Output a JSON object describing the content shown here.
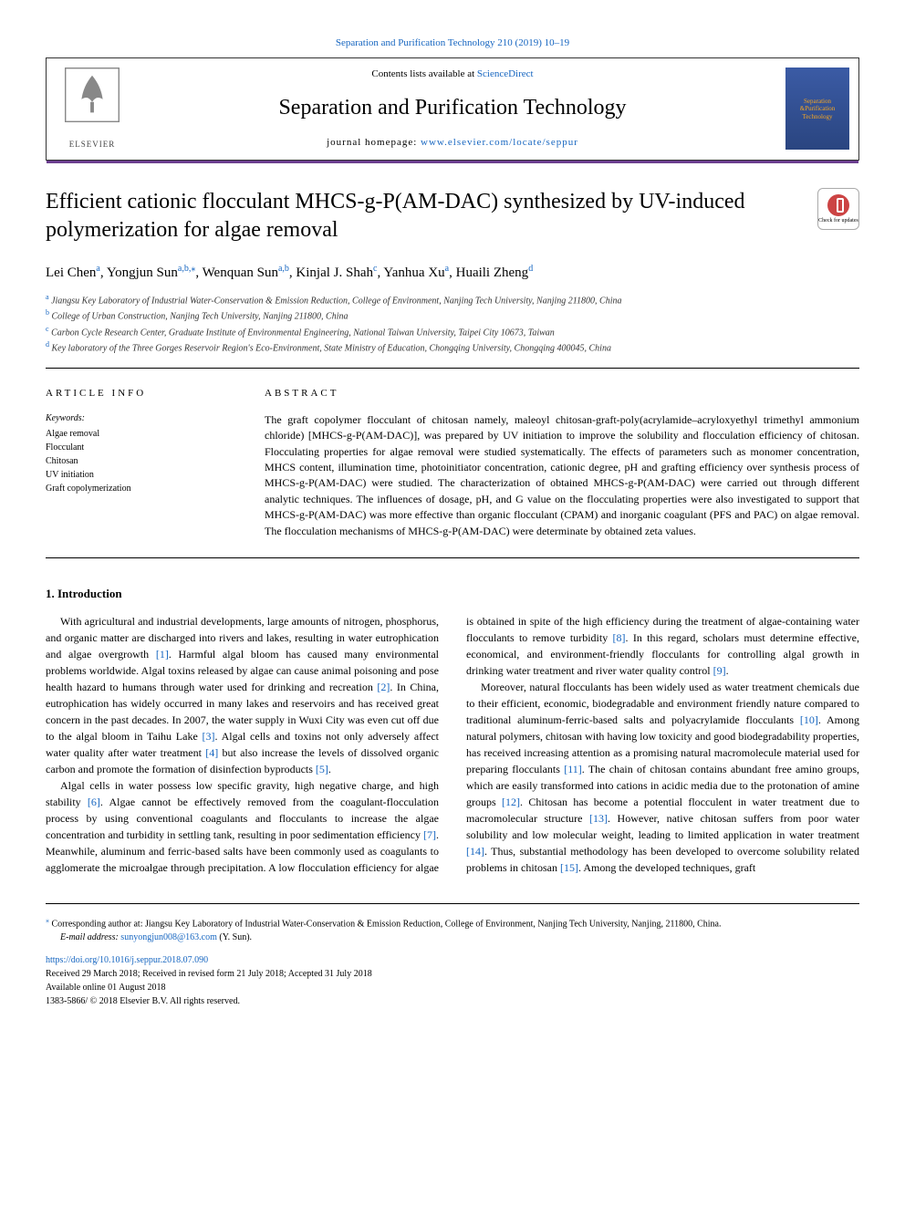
{
  "top_citation": "Separation and Purification Technology 210 (2019) 10–19",
  "header": {
    "contents_prefix": "Contents lists available at ",
    "contents_link": "ScienceDirect",
    "journal_name": "Separation and Purification Technology",
    "homepage_prefix": "journal homepage: ",
    "homepage_link": "www.elsevier.com/locate/seppur",
    "elsevier_label": "ELSEVIER",
    "cover_line1": "Separation",
    "cover_line2": "&Purification",
    "cover_line3": "Technology"
  },
  "updates_badge": "Check for updates",
  "title": "Efficient cationic flocculant MHCS-g-P(AM-DAC) synthesized by UV-induced polymerization for algae removal",
  "authors": [
    {
      "name": "Lei Chen",
      "sups": "a"
    },
    {
      "name": "Yongjun Sun",
      "sups": "a,b,⁎"
    },
    {
      "name": "Wenquan Sun",
      "sups": "a,b"
    },
    {
      "name": "Kinjal J. Shah",
      "sups": "c"
    },
    {
      "name": "Yanhua Xu",
      "sups": "a"
    },
    {
      "name": "Huaili Zheng",
      "sups": "d"
    }
  ],
  "affiliations": [
    {
      "sup": "a",
      "text": "Jiangsu Key Laboratory of Industrial Water-Conservation & Emission Reduction, College of Environment, Nanjing Tech University, Nanjing 211800, China"
    },
    {
      "sup": "b",
      "text": "College of Urban Construction, Nanjing Tech University, Nanjing 211800, China"
    },
    {
      "sup": "c",
      "text": "Carbon Cycle Research Center, Graduate Institute of Environmental Engineering, National Taiwan University, Taipei City 10673, Taiwan"
    },
    {
      "sup": "d",
      "text": "Key laboratory of the Three Gorges Reservoir Region's Eco-Environment, State Ministry of Education, Chongqing University, Chongqing 400045, China"
    }
  ],
  "article_info": {
    "heading": "ARTICLE INFO",
    "keywords_label": "Keywords:",
    "keywords": [
      "Algae removal",
      "Flocculant",
      "Chitosan",
      "UV initiation",
      "Graft copolymerization"
    ]
  },
  "abstract": {
    "heading": "ABSTRACT",
    "text": "The graft copolymer flocculant of chitosan namely, maleoyl chitosan-graft-poly(acrylamide–acryloxyethyl trimethyl ammonium chloride) [MHCS-g-P(AM-DAC)], was prepared by UV initiation to improve the solubility and flocculation efficiency of chitosan. Flocculating properties for algae removal were studied systematically. The effects of parameters such as monomer concentration, MHCS content, illumination time, photoinitiator concentration, cationic degree, pH and grafting efficiency over synthesis process of MHCS-g-P(AM-DAC) were studied. The characterization of obtained MHCS-g-P(AM-DAC) were carried out through different analytic techniques. The influences of dosage, pH, and G value on the flocculating properties were also investigated to support that MHCS-g-P(AM-DAC) was more effective than organic flocculant (CPAM) and inorganic coagulant (PFS and PAC) on algae removal. The flocculation mechanisms of MHCS-g-P(AM-DAC) were determinate by obtained zeta values."
  },
  "intro": {
    "heading": "1. Introduction",
    "p1a": "With agricultural and industrial developments, large amounts of nitrogen, phosphorus, and organic matter are discharged into rivers and lakes, resulting in water eutrophication and algae overgrowth ",
    "r1": "[1]",
    "p1b": ". Harmful algal bloom has caused many environmental problems worldwide. Algal toxins released by algae can cause animal poisoning and pose health hazard to humans through water used for drinking and recreation ",
    "r2": "[2]",
    "p1c": ". In China, eutrophication has widely occurred in many lakes and reservoirs and has received great concern in the past decades. In 2007, the water supply in Wuxi City was even cut off due to the algal bloom in Taihu Lake ",
    "r3": "[3]",
    "p1d": ". Algal cells and toxins not only adversely affect water quality after water treatment ",
    "r4": "[4]",
    "p1e": " but also increase the levels of dissolved organic carbon and promote the formation of disinfection byproducts ",
    "r5": "[5]",
    "p1f": ".",
    "p2a": "Algal cells in water possess low specific gravity, high negative charge, and high stability ",
    "r6": "[6]",
    "p2b": ". Algae cannot be effectively removed from the coagulant-flocculation process by using conventional coagulants and flocculants to increase the algae concentration and turbidity in settling tank, resulting in poor sedimentation efficiency ",
    "r7": "[7]",
    "p2c": ". Meanwhile, aluminum and ferric-based salts have been commonly used as coagulants to agglomerate the microalgae through precipitation. A low flocculation efficiency for algae is obtained in spite of the high efficiency during the treatment of algae-containing water flocculants to remove turbidity ",
    "r8": "[8]",
    "p2d": ". In this regard, scholars must determine effective, economical, and environment-friendly flocculants for controlling algal growth in drinking water treatment and river water quality control ",
    "r9": "[9]",
    "p2e": ".",
    "p3a": "Moreover, natural flocculants has been widely used as water treatment chemicals due to their efficient, economic, biodegradable and environment friendly nature compared to traditional aluminum-ferric-based salts and polyacrylamide flocculants ",
    "r10": "[10]",
    "p3b": ". Among natural polymers, chitosan with having low toxicity and good biodegradability properties, has received increasing attention as a promising natural macromolecule material used for preparing flocculants ",
    "r11": "[11]",
    "p3c": ". The chain of chitosan contains abundant free amino groups, which are easily transformed into cations in acidic media due to the protonation of amine groups ",
    "r12": "[12]",
    "p3d": ". Chitosan has become a potential flocculent in water treatment due to macromolecular structure ",
    "r13": "[13]",
    "p3e": ". However, native chitosan suffers from poor water solubility and low molecular weight, leading to limited application in water treatment ",
    "r14": "[14]",
    "p3f": ". Thus, substantial methodology has been developed to overcome solubility related problems in chitosan ",
    "r15": "[15]",
    "p3g": ". Among the developed techniques, graft"
  },
  "footer": {
    "corr_sup": "⁎",
    "corr_text": " Corresponding author at: Jiangsu Key Laboratory of Industrial Water-Conservation & Emission Reduction, College of Environment, Nanjing Tech University, Nanjing, 211800, China.",
    "email_label": "E-mail address: ",
    "email": "sunyongjun008@163.com",
    "email_suffix": " (Y. Sun).",
    "doi": "https://doi.org/10.1016/j.seppur.2018.07.090",
    "history": "Received 29 March 2018; Received in revised form 21 July 2018; Accepted 31 July 2018",
    "online": "Available online 01 August 2018",
    "copyright": "1383-5866/ © 2018 Elsevier B.V. All rights reserved."
  },
  "colors": {
    "link": "#1565c0",
    "rule": "#6b3e8f",
    "cover_bg_top": "#3b5ba5",
    "cover_bg_bottom": "#2a4580",
    "cover_text": "#f5a623"
  }
}
